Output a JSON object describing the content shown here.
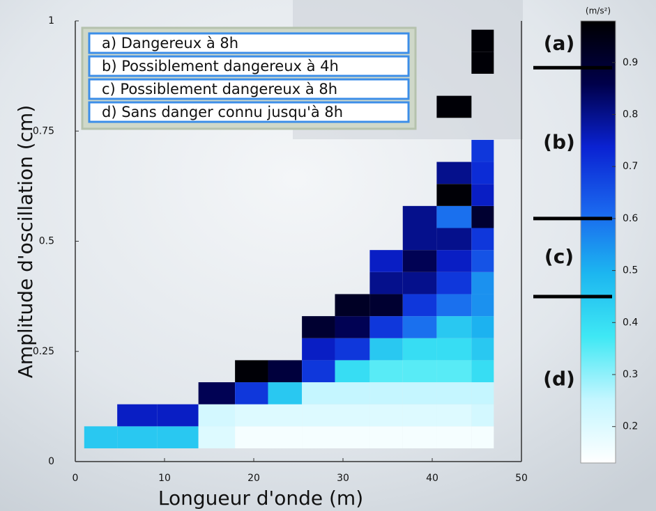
{
  "chart_data": {
    "type": "heatmap",
    "xlabel": "Longueur d'onde (m)",
    "ylabel": "Amplitude d'oscillation (cm)",
    "xlim": [
      0,
      50
    ],
    "xticks": [
      0,
      10,
      20,
      30,
      40,
      50
    ],
    "ylim": [
      0,
      1
    ],
    "yticks": [
      0,
      0.25,
      0.5,
      0.75,
      1
    ],
    "x_edges": [
      1,
      4.7,
      9.2,
      13.8,
      17.9,
      21.6,
      25.4,
      29.1,
      33,
      36.7,
      40.5,
      44.4,
      46.9
    ],
    "y_edges": [
      0.03,
      0.08,
      0.13,
      0.18,
      0.23,
      0.28,
      0.33,
      0.38,
      0.43,
      0.48,
      0.53,
      0.58,
      0.63,
      0.68,
      0.73,
      0.78,
      0.83,
      0.88,
      0.93,
      0.98
    ],
    "z": [
      [
        0.45,
        0.45,
        0.45,
        0.2,
        0.15,
        0.15,
        0.15,
        0.15,
        0.15,
        0.15,
        0.15,
        0.15
      ],
      [
        null,
        0.75,
        0.75,
        0.22,
        0.2,
        0.2,
        0.2,
        0.2,
        0.2,
        0.2,
        0.2,
        0.22
      ],
      [
        null,
        null,
        null,
        0.85,
        0.7,
        0.45,
        0.25,
        0.25,
        0.25,
        0.25,
        0.25,
        0.25
      ],
      [
        null,
        null,
        null,
        null,
        0.97,
        0.88,
        0.7,
        0.4,
        0.35,
        0.35,
        0.35,
        0.4
      ],
      [
        null,
        null,
        null,
        null,
        null,
        null,
        0.75,
        0.7,
        0.45,
        0.4,
        0.4,
        0.45
      ],
      [
        null,
        null,
        null,
        null,
        null,
        null,
        0.9,
        0.85,
        0.7,
        0.6,
        0.45,
        0.5
      ],
      [
        null,
        null,
        null,
        null,
        null,
        null,
        null,
        0.92,
        0.9,
        0.7,
        0.6,
        0.55
      ],
      [
        null,
        null,
        null,
        null,
        null,
        null,
        null,
        null,
        0.8,
        0.8,
        0.7,
        0.55
      ],
      [
        null,
        null,
        null,
        null,
        null,
        null,
        null,
        null,
        0.75,
        0.85,
        0.75,
        0.65
      ],
      [
        null,
        null,
        null,
        null,
        null,
        null,
        null,
        null,
        null,
        0.8,
        0.8,
        0.7
      ],
      [
        null,
        null,
        null,
        null,
        null,
        null,
        null,
        null,
        null,
        0.8,
        0.6,
        0.9
      ],
      [
        null,
        null,
        null,
        null,
        null,
        null,
        null,
        null,
        null,
        null,
        0.97,
        0.75
      ],
      [
        null,
        null,
        null,
        null,
        null,
        null,
        null,
        null,
        null,
        null,
        0.8,
        0.72
      ],
      [
        null,
        null,
        null,
        null,
        null,
        null,
        null,
        null,
        null,
        null,
        null,
        0.7
      ],
      [
        null,
        null,
        null,
        null,
        null,
        null,
        null,
        null,
        null,
        null,
        null,
        null
      ],
      [
        null,
        null,
        null,
        null,
        null,
        null,
        null,
        null,
        null,
        null,
        0.97,
        null
      ],
      [
        null,
        null,
        null,
        null,
        null,
        null,
        null,
        null,
        null,
        null,
        null,
        null
      ],
      [
        null,
        null,
        null,
        null,
        null,
        null,
        null,
        null,
        null,
        null,
        null,
        0.97
      ],
      [
        null,
        null,
        null,
        null,
        null,
        null,
        null,
        null,
        null,
        null,
        null,
        0.97
      ]
    ],
    "colormap": [
      "#ffffff",
      "#c4f6ff",
      "#3fe8f4",
      "#1cb6f0",
      "#1a66ee",
      "#0a22d2",
      "#00004a",
      "#000000"
    ],
    "colorbar_label": "(m/s²)",
    "clim": [
      0.13,
      0.98
    ],
    "cticks": [
      0.2,
      0.3,
      0.4,
      0.5,
      0.6,
      0.7,
      0.8,
      0.9
    ],
    "thresholds": [
      0.89,
      0.6,
      0.45
    ],
    "zones": [
      "(a)",
      "(b)",
      "(c)",
      "(d)"
    ],
    "legend": [
      "a) Dangereux à 8h",
      "b) Possiblement dangereux à 4h",
      "c) Possiblement dangereux à 8h",
      "d) Sans danger connu jusqu'à 8h"
    ]
  }
}
